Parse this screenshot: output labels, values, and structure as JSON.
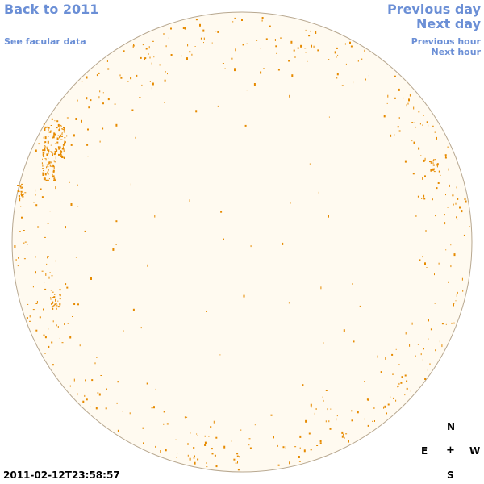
{
  "nav": {
    "back_label": "Back to 2011",
    "facular_label": "See facular data",
    "prev_day_label": "Previous day",
    "next_day_label": "Next day",
    "prev_hour_label": "Previous hour",
    "next_hour_label": "Next hour"
  },
  "compass": {
    "n": "N",
    "e": "E",
    "center": "+",
    "w": "W",
    "s": "S"
  },
  "timestamp": "2011-02-12T23:58:57",
  "colors": {
    "disk_fill": "#fffaf0",
    "disk_stroke": "#b8a890",
    "facula": "#e68a00",
    "link": "#6b8fd6"
  }
}
